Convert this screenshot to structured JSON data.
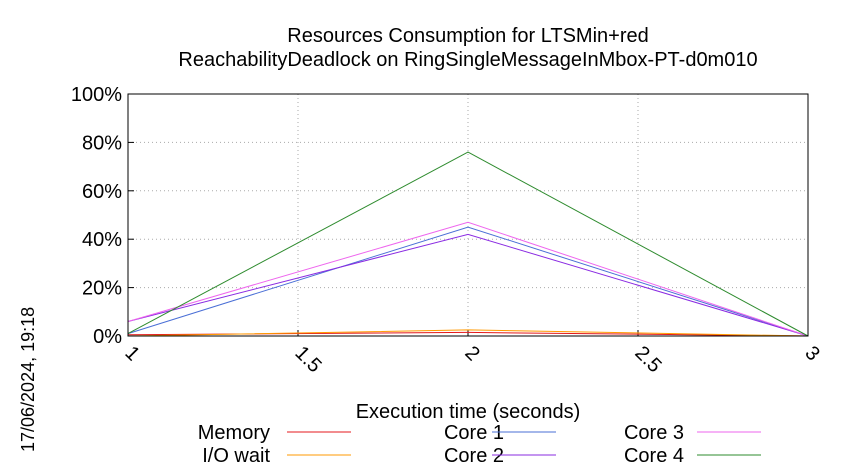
{
  "chart_data": {
    "type": "line",
    "title": [
      "Resources Consumption for LTSMin+red",
      "ReachabilityDeadlock on RingSingleMessageInMbox-PT-d0m010"
    ],
    "xlabel": "Execution time (seconds)",
    "ylabel": "",
    "xlim": [
      1,
      3
    ],
    "ylim": [
      0,
      100
    ],
    "x_ticks": [
      "1",
      "1.5",
      "2",
      "2.5",
      "3"
    ],
    "x_tick_values": [
      1,
      1.5,
      2,
      2.5,
      3
    ],
    "y_ticks": [
      "0%",
      "20%",
      "40%",
      "60%",
      "80%",
      "100%"
    ],
    "y_tick_values": [
      0,
      20,
      40,
      60,
      80,
      100
    ],
    "grid": true,
    "legend_position": "bottom",
    "x": [
      1,
      2,
      3
    ],
    "series": [
      {
        "name": "Memory",
        "color": "#e41a1c",
        "values": [
          0.5,
          1.5,
          0
        ]
      },
      {
        "name": "I/O wait",
        "color": "#ff9900",
        "values": [
          0,
          2.5,
          0
        ]
      },
      {
        "name": "Core 1",
        "color": "#4a6fd6",
        "values": [
          1,
          45,
          0
        ]
      },
      {
        "name": "Core 2",
        "color": "#8a2be2",
        "values": [
          6,
          42,
          0
        ]
      },
      {
        "name": "Core 3",
        "color": "#ee66ee",
        "values": [
          6,
          47,
          0
        ]
      },
      {
        "name": "Core 4",
        "color": "#2e8b2e",
        "values": [
          1,
          76,
          0
        ]
      }
    ]
  },
  "timestamp": "17/06/2024, 19:18"
}
